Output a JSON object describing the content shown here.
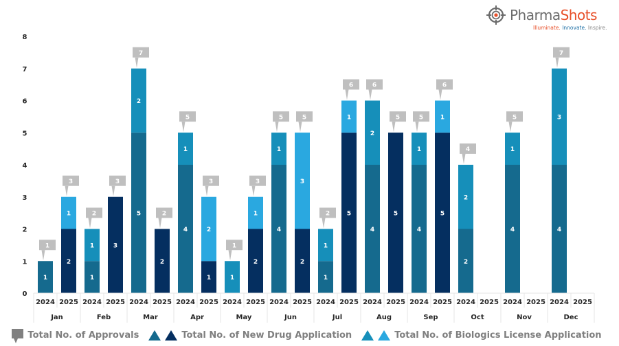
{
  "logo": {
    "name_part1": "Pharma",
    "name_part2": "Shots",
    "tagline_part1": "Illuminate.",
    "tagline_part2": "Innovate.",
    "tagline_part3": "Inspire."
  },
  "legend": {
    "approvals_label": "Total No. of Approvals",
    "nda_label": "Total No. of New Drug Application",
    "bla_label": "Total No. of Biologics License Application"
  },
  "colors": {
    "nda_2024": "#156a8e",
    "nda_2025": "#052f60",
    "bla_2024": "#168fba",
    "bla_2025": "#2aa8e0",
    "callout": "#bfbfbf",
    "axis_text": "#262626",
    "legend_text": "#7f7f7f",
    "grid": "#e6e6e6"
  },
  "chart_data": {
    "type": "bar",
    "stacked": true,
    "title": "",
    "xlabel": "",
    "ylabel": "",
    "ylim": [
      0,
      8
    ],
    "yticks": [
      0,
      1,
      2,
      3,
      4,
      5,
      6,
      7,
      8
    ],
    "grid": false,
    "legend_position": "bottom",
    "months": [
      "Jan",
      "Feb",
      "Mar",
      "Apr",
      "May",
      "Jun",
      "Jul",
      "Aug",
      "Sep",
      "Oct",
      "Nov",
      "Dec"
    ],
    "years": [
      "2024",
      "2025"
    ],
    "series": [
      {
        "name": "Total No. of New Drug Application",
        "key": "nda",
        "values_2024": [
          1,
          1,
          5,
          4,
          0,
          4,
          1,
          4,
          4,
          2,
          4,
          4
        ],
        "values_2025": [
          2,
          3,
          2,
          1,
          2,
          2,
          5,
          5,
          5,
          0,
          0,
          0
        ]
      },
      {
        "name": "Total No. of Biologics License Application",
        "key": "bla",
        "values_2024": [
          0,
          1,
          2,
          1,
          1,
          1,
          1,
          2,
          1,
          2,
          1,
          3
        ],
        "values_2025": [
          1,
          0,
          0,
          2,
          1,
          3,
          1,
          0,
          1,
          0,
          0,
          0
        ]
      }
    ],
    "totals_2024": [
      1,
      2,
      7,
      5,
      1,
      5,
      2,
      6,
      5,
      4,
      5,
      7
    ],
    "totals_2025": [
      3,
      3,
      2,
      3,
      3,
      5,
      6,
      5,
      6,
      0,
      0,
      0
    ],
    "totals_label": "Total No. of Approvals"
  }
}
